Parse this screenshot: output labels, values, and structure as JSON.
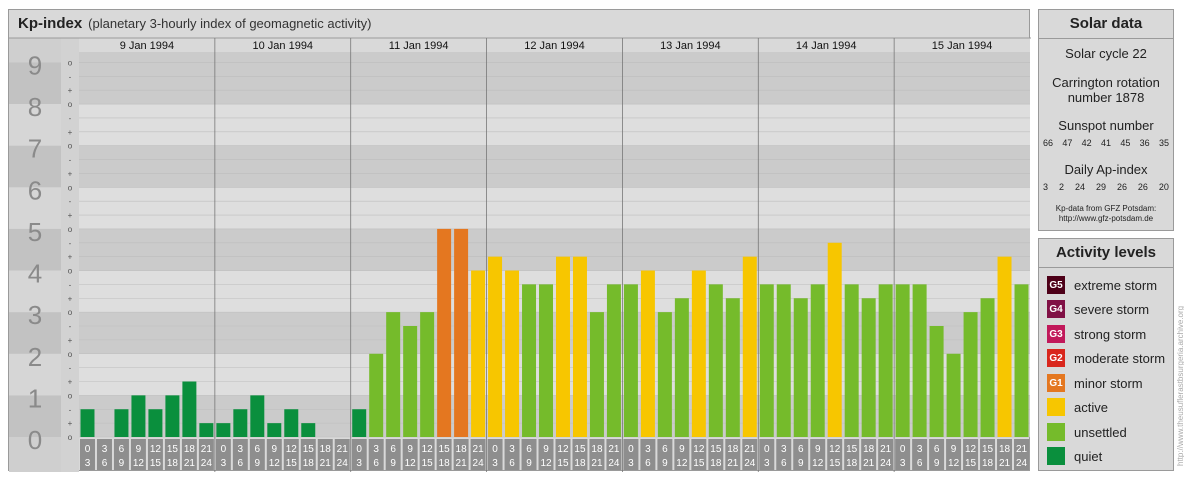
{
  "header": {
    "title": "Kp-index",
    "subtitle": "(planetary 3-hourly index of geomagnetic activity)"
  },
  "colors": {
    "quiet": "#0a8f3d",
    "unsettled": "#75bb2b",
    "active": "#f7c600",
    "minor": "#e47720",
    "moderate": "#d9261c",
    "strong": "#c1185a",
    "severe": "#801045",
    "extreme": "#4d0018"
  },
  "chart_data": {
    "type": "bar",
    "title": "Kp-index",
    "ylim": [
      0,
      9
    ],
    "y_ticks": [
      "0",
      "1",
      "2",
      "3",
      "4",
      "5",
      "6",
      "7",
      "8",
      "9"
    ],
    "minor_ticks": [
      "-",
      "o",
      "+"
    ],
    "days": [
      "9 Jan 1994",
      "10 Jan 1994",
      "11 Jan 1994",
      "12 Jan 1994",
      "13 Jan 1994",
      "14 Jan 1994",
      "15 Jan 1994"
    ],
    "interval_start": [
      "0",
      "3",
      "6",
      "9",
      "12",
      "15",
      "18",
      "21"
    ],
    "interval_end": [
      "3",
      "6",
      "9",
      "12",
      "15",
      "18",
      "21",
      "24"
    ],
    "values": [
      0.667,
      0.0,
      0.667,
      1.0,
      0.667,
      1.0,
      1.333,
      0.333,
      0.333,
      0.667,
      1.0,
      0.333,
      0.667,
      0.333,
      0.0,
      0.0,
      0.667,
      2.0,
      3.0,
      2.667,
      3.0,
      5.0,
      5.0,
      4.0,
      4.333,
      4.0,
      3.667,
      3.667,
      4.333,
      4.333,
      3.0,
      3.667,
      3.667,
      4.0,
      3.0,
      3.333,
      4.0,
      3.667,
      3.333,
      4.333,
      3.667,
      3.667,
      3.333,
      3.667,
      4.667,
      3.667,
      3.333,
      3.667,
      3.667,
      3.667,
      2.667,
      2.0,
      3.0,
      3.333,
      4.333,
      3.667
    ],
    "legend": [
      "quiet",
      "unsettled",
      "active",
      "minor storm",
      "moderate storm",
      "strong storm",
      "severe storm",
      "extreme storm"
    ],
    "grid": true
  },
  "solar": {
    "title": "Solar data",
    "cycle": "Solar cycle 22",
    "carrington_1": "Carrington rotation",
    "carrington_2": "number 1878",
    "sunspot_label": "Sunspot number",
    "sunspot_values": [
      "66",
      "47",
      "42",
      "41",
      "45",
      "36",
      "35"
    ],
    "ap_label": "Daily Ap-index",
    "ap_values": [
      "3",
      "2",
      "24",
      "29",
      "26",
      "26",
      "20"
    ],
    "note_1": "Kp-data from GFZ Potsdam:",
    "note_2": "http://www.gfz-potsdam.de"
  },
  "activity": {
    "title": "Activity levels",
    "levels": [
      {
        "code": "G5",
        "label": "extreme storm"
      },
      {
        "code": "G4",
        "label": "severe storm"
      },
      {
        "code": "G3",
        "label": "strong storm"
      },
      {
        "code": "G2",
        "label": "moderate storm"
      },
      {
        "code": "G1",
        "label": "minor storm"
      },
      {
        "code": "",
        "label": "active"
      },
      {
        "code": "",
        "label": "unsettled"
      },
      {
        "code": "",
        "label": "quiet"
      }
    ]
  },
  "credit": "http://www.theusuflerastbsurgeria.archive.org"
}
